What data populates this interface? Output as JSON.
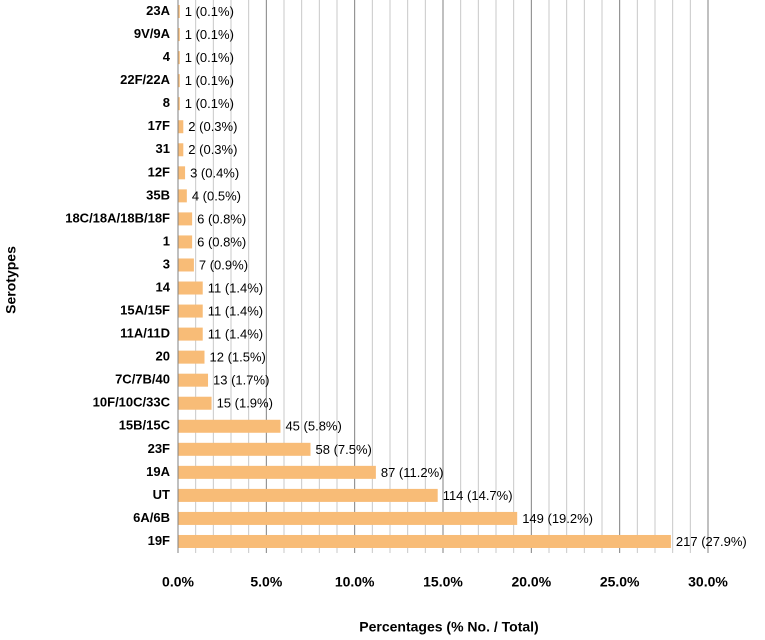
{
  "chart_data": {
    "type": "barh",
    "xlabel": "Percentages (% No. / Total)",
    "ylabel": "Serotypes",
    "categories": [
      "23A",
      "9V/9A",
      "4",
      "22F/22A",
      "8",
      "17F",
      "31",
      "12F",
      "35B",
      "18C/18A/18B/18F",
      "1",
      "3",
      "14",
      "15A/15F",
      "11A/11D",
      "20",
      "7C/7B/40",
      "10F/10C/33C",
      "15B/15C",
      "23F",
      "19A",
      "UT",
      "6A/6B",
      "19F"
    ],
    "values": [
      0.1,
      0.1,
      0.1,
      0.1,
      0.1,
      0.3,
      0.3,
      0.4,
      0.5,
      0.8,
      0.8,
      0.9,
      1.4,
      1.4,
      1.4,
      1.5,
      1.7,
      1.9,
      5.8,
      7.5,
      11.2,
      14.7,
      19.2,
      27.9
    ],
    "value_labels": [
      "1 (0.1%)",
      "1 (0.1%)",
      "1 (0.1%)",
      "1 (0.1%)",
      "1 (0.1%)",
      "2 (0.3%)",
      "2 (0.3%)",
      "3 (0.4%)",
      "4 (0.5%)",
      "6 (0.8%)",
      "6 (0.8%)",
      "7 (0.9%)",
      "11 (1.4%)",
      "11 (1.4%)",
      "11 (1.4%)",
      "12 (1.5%)",
      "13 (1.7%)",
      "15 (1.9%)",
      "45 (5.8%)",
      "58 (7.5%)",
      "87 (11.2%)",
      "114 (14.7%)",
      "149 (19.2%)",
      "217 (27.9%)"
    ],
    "color": "#f8bc77",
    "xlim": [
      0,
      30
    ],
    "xticks": [
      {
        "value": 0,
        "label": "0.0%"
      },
      {
        "value": 5,
        "label": "5.0%"
      },
      {
        "value": 10,
        "label": "10.0%"
      },
      {
        "value": 15,
        "label": "15.0%"
      },
      {
        "value": 20,
        "label": "20.0%"
      },
      {
        "value": 25,
        "label": "25.0%"
      },
      {
        "value": 30,
        "label": "30.0%"
      }
    ],
    "xminorticks": [
      1,
      2,
      3,
      4,
      6,
      7,
      8,
      9,
      11,
      12,
      13,
      14,
      16,
      17,
      18,
      19,
      21,
      22,
      23,
      24,
      26,
      27,
      28,
      29
    ],
    "grid": true
  }
}
